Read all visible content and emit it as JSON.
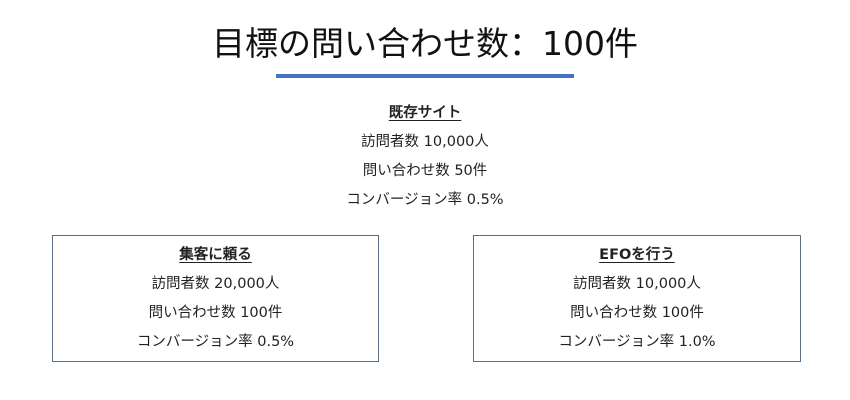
{
  "title": "目標の問い合わせ数：100件",
  "colors": {
    "accent": "#4472c4",
    "box_border": "#5a6f84"
  },
  "existing_site": {
    "heading": "既存サイト",
    "visitors": "訪問者数 10,000人",
    "inquiries": "問い合わせ数 50件",
    "conversion": "コンバージョン率 0.5%"
  },
  "rely_on_traffic": {
    "heading": "集客に頼る",
    "visitors": "訪問者数 20,000人",
    "inquiries": "問い合わせ数 100件",
    "conversion": "コンバージョン率 0.5%"
  },
  "do_efo": {
    "heading": "EFOを行う",
    "visitors": "訪問者数 10,000人",
    "inquiries": "問い合わせ数 100件",
    "conversion": "コンバージョン率 1.0%"
  }
}
